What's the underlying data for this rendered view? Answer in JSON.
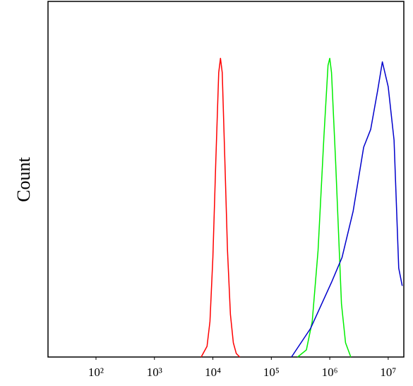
{
  "chart_data": {
    "type": "line",
    "ylabel": "Count",
    "xscale": "log",
    "xlim": [
      15.1,
      18500000
    ],
    "ylim": [
      0,
      100
    ],
    "xticks": [
      {
        "value": 100,
        "label": "10²"
      },
      {
        "value": 1000,
        "label": "10³"
      },
      {
        "value": 10000,
        "label": "10⁴"
      },
      {
        "value": 100000,
        "label": "10⁵"
      },
      {
        "value": 1000000,
        "label": "10⁶"
      },
      {
        "value": 10000000,
        "label": "10⁷"
      }
    ],
    "series": [
      {
        "color": "#ff0000",
        "x": [
          6310,
          7943,
          8913,
          10000,
          11220,
          12589,
          13490,
          14454,
          15849,
          17783,
          19953,
          22387,
          25119,
          28840
        ],
        "values": [
          0,
          3,
          10,
          28,
          55,
          80,
          84,
          80,
          58,
          30,
          12,
          4,
          1,
          0
        ]
      },
      {
        "color": "#00ee00",
        "x": [
          281838,
          398107,
          501187,
          630957,
          794328,
          933254,
          1000000,
          1071519,
          1258925,
          1412538,
          1584893,
          1862087,
          2290868
        ],
        "values": [
          0,
          2,
          10,
          30,
          62,
          82,
          84,
          80,
          55,
          35,
          15,
          4,
          0
        ]
      },
      {
        "color": "#0000cc",
        "x": [
          221309,
          467735,
          1071519,
          1621810,
          2511886,
          3801894,
          5011872,
          6606934,
          7943282,
          10000000,
          12589254,
          15135612,
          17378008
        ],
        "values": [
          0,
          8,
          21,
          28,
          41,
          59,
          64,
          75,
          83,
          76,
          61,
          25,
          20
        ]
      }
    ]
  }
}
